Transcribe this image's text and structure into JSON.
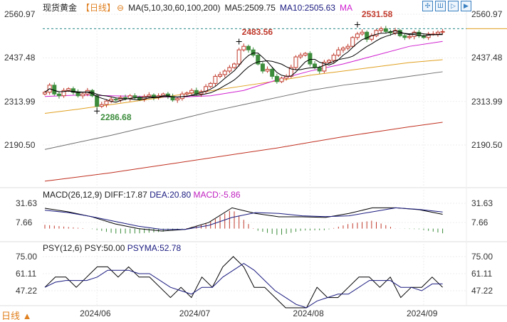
{
  "header": {
    "instrument": "现货黄金",
    "period": "【日线】",
    "ma_label": "MA(5,10,30,60,100,200)",
    "ma5": "MA5:2509.75",
    "ma10": "MA10:2505.63",
    "ma_more": "MA",
    "toolbar_icons": [
      "crosshair-icon",
      "candlestick-icon",
      "chart-indicator-icon",
      "next-icon"
    ]
  },
  "footer": {
    "period_button": "日线 ▲"
  },
  "colors": {
    "up": "#c0392b",
    "down": "#3c8c3c",
    "ma5": "#000000",
    "ma10": "#000000",
    "ma30": "#d020d0",
    "ma60": "#e0a020",
    "ma100": "#707070",
    "ma200": "#c03020",
    "dea": "#1a1a80",
    "macd": "#c020c0",
    "dashed": "#2a8a8a"
  },
  "chart_data": {
    "type": "candlestick",
    "x_ticks": [
      "2024/06",
      "2024/07",
      "2024/08",
      "2024/09"
    ],
    "price": {
      "y_ticks": [
        "2560.97",
        "2437.48",
        "2313.99",
        "2190.50"
      ],
      "ylim": [
        2190.5,
        2560.97
      ],
      "annotations": {
        "high": "2531.58",
        "mid_high": "2483.56",
        "low": "2286.68"
      },
      "closes": [
        2340,
        2360,
        2335,
        2330,
        2345,
        2350,
        2340,
        2330,
        2335,
        2345,
        2330,
        2300,
        2305,
        2315,
        2320,
        2318,
        2325,
        2322,
        2330,
        2326,
        2320,
        2328,
        2332,
        2325,
        2330,
        2335,
        2328,
        2318,
        2322,
        2335,
        2338,
        2345,
        2335,
        2342,
        2356,
        2365,
        2385,
        2390,
        2400,
        2410,
        2420,
        2460,
        2470,
        2460,
        2445,
        2420,
        2400,
        2405,
        2385,
        2370,
        2380,
        2385,
        2410,
        2440,
        2445,
        2450,
        2420,
        2410,
        2400,
        2425,
        2430,
        2445,
        2460,
        2465,
        2470,
        2495,
        2505,
        2510,
        2490,
        2500,
        2515,
        2520,
        2512,
        2508,
        2515,
        2500,
        2495,
        2498,
        2510,
        2500,
        2495,
        2505,
        2505,
        2510,
        2512
      ],
      "ma30": [
        2328,
        2332,
        2330,
        2328,
        2326,
        2330,
        2345,
        2375,
        2400,
        2420,
        2445,
        2470,
        2484
      ],
      "ma60": [
        2280,
        2292,
        2305,
        2318,
        2332,
        2344,
        2358,
        2372,
        2388,
        2400,
        2412,
        2424,
        2432
      ],
      "ma100": [
        2178,
        2198,
        2218,
        2240,
        2262,
        2285,
        2305,
        2325,
        2345,
        2360,
        2372,
        2385,
        2398
      ],
      "ma200": [
        2088,
        2100,
        2112,
        2126,
        2140,
        2154,
        2168,
        2182,
        2198,
        2214,
        2228,
        2242,
        2255
      ],
      "dashed_level": 2520
    },
    "macd": {
      "title": "MACD(26,12,9)",
      "diff_label": "DIFF:17.87",
      "dea_label": "DEA:20.80",
      "macd_label": "MACD:-5.86",
      "y_ticks": [
        "31.63",
        "7.66"
      ],
      "diff": [
        25.4,
        21,
        14.8,
        5.9,
        0,
        -3,
        -1,
        7.6,
        26,
        19,
        14.8,
        14.8,
        14,
        19,
        26,
        26,
        23.6,
        17.87
      ],
      "dea": [
        23,
        20,
        15,
        9,
        3,
        -1,
        -1,
        4,
        14,
        20,
        19,
        16,
        15,
        16,
        21,
        26,
        24,
        20.8
      ]
    },
    "psy": {
      "title": "PSY(12,6)",
      "psy_label": "PSY:50.00",
      "psyma_label": "PSYMA:52.78",
      "y_ticks": [
        "75.00",
        "61.11",
        "47.22"
      ],
      "values": [
        50,
        58.33,
        58.33,
        50,
        58.33,
        66.67,
        66.67,
        58.33,
        66.67,
        58.33,
        58.33,
        50,
        41.67,
        50,
        41.67,
        58.33,
        50,
        66.67,
        75,
        66.67,
        50,
        50,
        41.67,
        33.33,
        33.33,
        33.33,
        50,
        41.67,
        41.67,
        50,
        58.33,
        58.33,
        50,
        58.33,
        41.67,
        50,
        50,
        58.33,
        50
      ]
    }
  }
}
